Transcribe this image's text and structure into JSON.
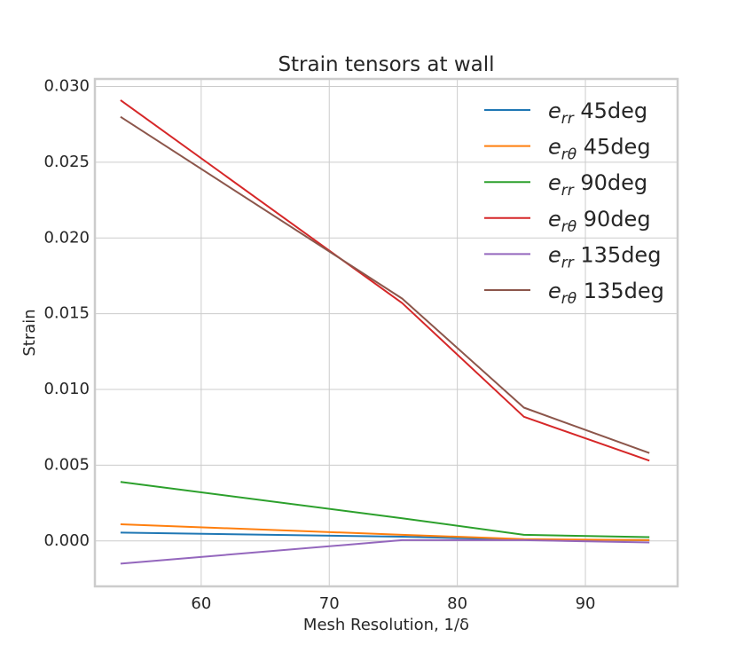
{
  "chart_data": {
    "type": "line",
    "title": "Strain tensors at wall",
    "xlabel": "Mesh Resolution, 1/δ",
    "ylabel": "Strain",
    "xlim": [
      51.7,
      97.2
    ],
    "ylim": [
      -0.003,
      0.0305
    ],
    "xticks": [
      60,
      70,
      80,
      90
    ],
    "xtick_labels": [
      "60",
      "70",
      "80",
      "90"
    ],
    "yticks": [
      0.0,
      0.005,
      0.01,
      0.015,
      0.02,
      0.025,
      0.03
    ],
    "ytick_labels": [
      "0.000",
      "0.005",
      "0.010",
      "0.015",
      "0.020",
      "0.025",
      "0.030"
    ],
    "grid": true,
    "legend_position": "top-right",
    "x": [
      53.7,
      75.7,
      85.2,
      95.0
    ],
    "series": [
      {
        "name": "e_rr 45deg",
        "sym": "e",
        "sub": "rr",
        "suffix": " 45deg",
        "color": "#1f77b4",
        "values": [
          0.00055,
          0.00028,
          8e-05,
          5e-05
        ]
      },
      {
        "name": "e_rθ 45deg",
        "sym": "e",
        "sub": "rθ",
        "suffix": " 45deg",
        "color": "#ff7f0e",
        "values": [
          0.0011,
          0.0004,
          0.00012,
          5e-05
        ]
      },
      {
        "name": "e_rr 90deg",
        "sym": "e",
        "sub": "rr",
        "suffix": " 90deg",
        "color": "#2ca02c",
        "values": [
          0.0039,
          0.0015,
          0.0004,
          0.00025
        ]
      },
      {
        "name": "e_rθ 90deg",
        "sym": "e",
        "sub": "rθ",
        "suffix": " 90deg",
        "color": "#d62728",
        "values": [
          0.0291,
          0.0157,
          0.0082,
          0.0053
        ]
      },
      {
        "name": "e_rr 135deg",
        "sym": "e",
        "sub": "rr",
        "suffix": " 135deg",
        "color": "#9467bd",
        "values": [
          -0.0015,
          5e-05,
          5e-05,
          -0.0001
        ]
      },
      {
        "name": "e_rθ 135deg",
        "sym": "e",
        "sub": "rθ",
        "suffix": " 135deg",
        "color": "#8c564b",
        "values": [
          0.028,
          0.016,
          0.0088,
          0.0058
        ]
      }
    ]
  }
}
